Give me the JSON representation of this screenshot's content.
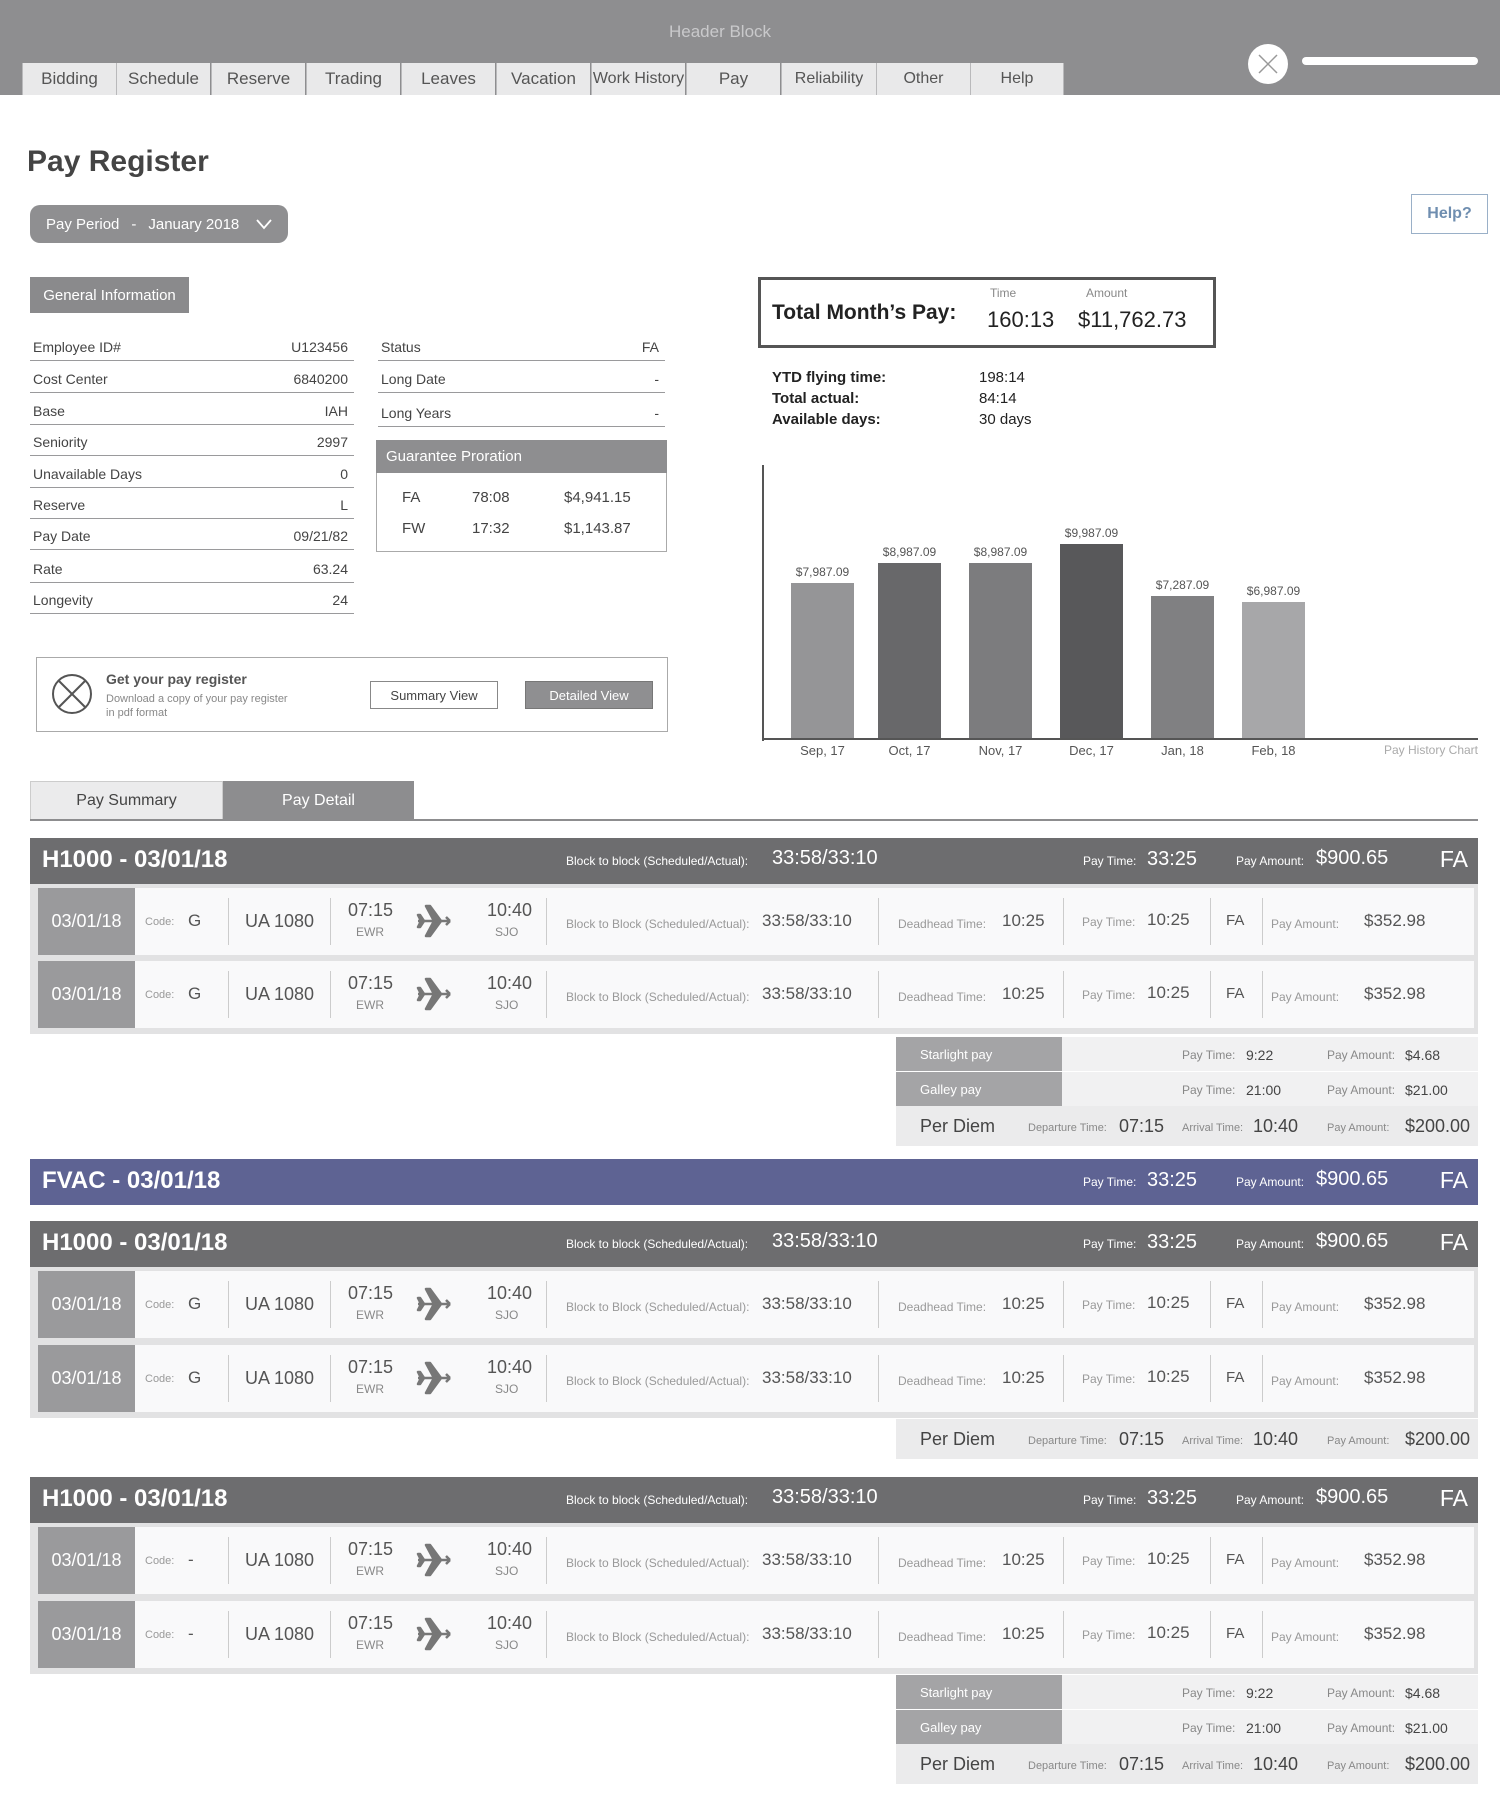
{
  "header": {
    "title": "Header Block",
    "tabs": [
      "Bidding",
      "Schedule",
      "Reserve",
      "Trading",
      "Leaves",
      "Vacation",
      "Work History",
      "Pay",
      "Reliability",
      "Other",
      "Help"
    ]
  },
  "page": {
    "title": "Pay Register",
    "pay_period_label": "Pay Period",
    "pay_period_sep": "-",
    "pay_period_value": "January 2018",
    "help": "Help?"
  },
  "general_info": {
    "title": "General Information",
    "left": [
      {
        "label": "Employee ID#",
        "value": "U123456"
      },
      {
        "label": "Cost Center",
        "value": "6840200"
      },
      {
        "label": "Base",
        "value": "IAH"
      },
      {
        "label": "Seniority",
        "value": "2997"
      },
      {
        "label": "Unavailable Days",
        "value": "0"
      },
      {
        "label": "Reserve",
        "value": "L"
      },
      {
        "label": "Pay Date",
        "value": "09/21/82"
      },
      {
        "label": "Rate",
        "value": "63.24"
      },
      {
        "label": "Longevity",
        "value": "24"
      }
    ],
    "right": [
      {
        "label": "Status",
        "value": "FA"
      },
      {
        "label": "Long Date",
        "value": "-"
      },
      {
        "label": "Long Years",
        "value": "-"
      }
    ]
  },
  "guarantee": {
    "title": "Guarantee Proration",
    "rows": [
      {
        "type": "FA",
        "time": "78:08",
        "amount": "$4,941.15"
      },
      {
        "type": "FW",
        "time": "17:32",
        "amount": "$1,143.87"
      }
    ]
  },
  "register": {
    "title": "Get your pay register",
    "desc1": "Download a copy of your pay register",
    "desc2": "in pdf format",
    "summary": "Summary View",
    "detailed": "Detailed View"
  },
  "total": {
    "label": "Total Month’s Pay:",
    "time_label": "Time",
    "time": "160:13",
    "amount_label": "Amount",
    "amount": "$11,762.73"
  },
  "ytd": [
    {
      "label": "YTD flying time:",
      "value": "198:14"
    },
    {
      "label": "Total actual:",
      "value": "84:14"
    },
    {
      "label": "Available days:",
      "value": "30 days"
    }
  ],
  "chart_data": {
    "type": "bar",
    "caption": "Pay History Chart",
    "categories": [
      "Sep, 17",
      "Oct, 17",
      "Nov, 17",
      "Dec, 17",
      "Jan, 18",
      "Feb, 18"
    ],
    "values": [
      7987.09,
      8987.09,
      8987.09,
      9987.09,
      7287.09,
      6987.09
    ],
    "labels": [
      "$7,987.09",
      "$8,987.09",
      "$8,987.09",
      "$9,987.09",
      "$7,287.09",
      "$6,987.09"
    ],
    "colors": [
      "#959597",
      "#68686a",
      "#7c7c7e",
      "#58585a",
      "#808082",
      "#a7a7a9"
    ]
  },
  "tabs": {
    "summary": "Pay Summary",
    "detail": "Pay Detail"
  },
  "strings": {
    "bb_header": "Block to block (Scheduled/Actual):",
    "pay_time": "Pay Time:",
    "pay_amount": "Pay Amount:",
    "code": "Code:",
    "bb_leg": "Block to Block (Scheduled/Actual):",
    "deadhead": "Deadhead Time:",
    "departure": "Departure Time:",
    "arrival": "Arrival Time:",
    "per_diem": "Per Diem"
  },
  "trips": [
    {
      "title": "H1000 - 03/01/18",
      "bb": "33:58/33:10",
      "pay_time": "33:25",
      "pay_amount": "$900.65",
      "fa": "FA",
      "legs": [
        {
          "date": "03/01/18",
          "code": "G",
          "flight": "UA 1080",
          "dep": "07:15",
          "from": "EWR",
          "arr": "10:40",
          "to": "SJO",
          "bb": "33:58/33:10",
          "deadhead": "10:25",
          "pay_time": "10:25",
          "pos": "FA",
          "pay_amount": "$352.98"
        },
        {
          "date": "03/01/18",
          "code": "G",
          "flight": "UA 1080",
          "dep": "07:15",
          "from": "EWR",
          "arr": "10:40",
          "to": "SJO",
          "bb": "33:58/33:10",
          "deadhead": "10:25",
          "pay_time": "10:25",
          "pos": "FA",
          "pay_amount": "$352.98"
        }
      ],
      "extras": [
        {
          "label": "Starlight pay",
          "pay_time": "9:22",
          "pay_amount": "$4.68"
        },
        {
          "label": "Galley pay",
          "pay_time": "21:00",
          "pay_amount": "$21.00"
        }
      ],
      "per_diem": {
        "departure": "07:15",
        "arrival": "10:40",
        "amount": "$200.00"
      }
    },
    {
      "title": "FVAC -  03/01/18",
      "pay_time": "33:25",
      "pay_amount": "$900.65",
      "fa": "FA"
    },
    {
      "title": "H1000 - 03/01/18",
      "bb": "33:58/33:10",
      "pay_time": "33:25",
      "pay_amount": "$900.65",
      "fa": "FA",
      "legs": [
        {
          "date": "03/01/18",
          "code": "G",
          "flight": "UA 1080",
          "dep": "07:15",
          "from": "EWR",
          "arr": "10:40",
          "to": "SJO",
          "bb": "33:58/33:10",
          "deadhead": "10:25",
          "pay_time": "10:25",
          "pos": "FA",
          "pay_amount": "$352.98"
        },
        {
          "date": "03/01/18",
          "code": "G",
          "flight": "UA 1080",
          "dep": "07:15",
          "from": "EWR",
          "arr": "10:40",
          "to": "SJO",
          "bb": "33:58/33:10",
          "deadhead": "10:25",
          "pay_time": "10:25",
          "pos": "FA",
          "pay_amount": "$352.98"
        }
      ],
      "per_diem": {
        "departure": "07:15",
        "arrival": "10:40",
        "amount": "$200.00"
      }
    },
    {
      "title": "H1000 - 03/01/18",
      "bb": "33:58/33:10",
      "pay_time": "33:25",
      "pay_amount": "$900.65",
      "fa": "FA",
      "legs": [
        {
          "date": "03/01/18",
          "code": "-",
          "flight": "UA 1080",
          "dep": "07:15",
          "from": "EWR",
          "arr": "10:40",
          "to": "SJO",
          "bb": "33:58/33:10",
          "deadhead": "10:25",
          "pay_time": "10:25",
          "pos": "FA",
          "pay_amount": "$352.98"
        },
        {
          "date": "03/01/18",
          "code": "-",
          "flight": "UA 1080",
          "dep": "07:15",
          "from": "EWR",
          "arr": "10:40",
          "to": "SJO",
          "bb": "33:58/33:10",
          "deadhead": "10:25",
          "pay_time": "10:25",
          "pos": "FA",
          "pay_amount": "$352.98"
        }
      ],
      "extras": [
        {
          "label": "Starlight pay",
          "pay_time": "9:22",
          "pay_amount": "$4.68"
        },
        {
          "label": "Galley pay",
          "pay_time": "21:00",
          "pay_amount": "$21.00"
        }
      ],
      "per_diem": {
        "departure": "07:15",
        "arrival": "10:40",
        "amount": "$200.00"
      }
    }
  ]
}
